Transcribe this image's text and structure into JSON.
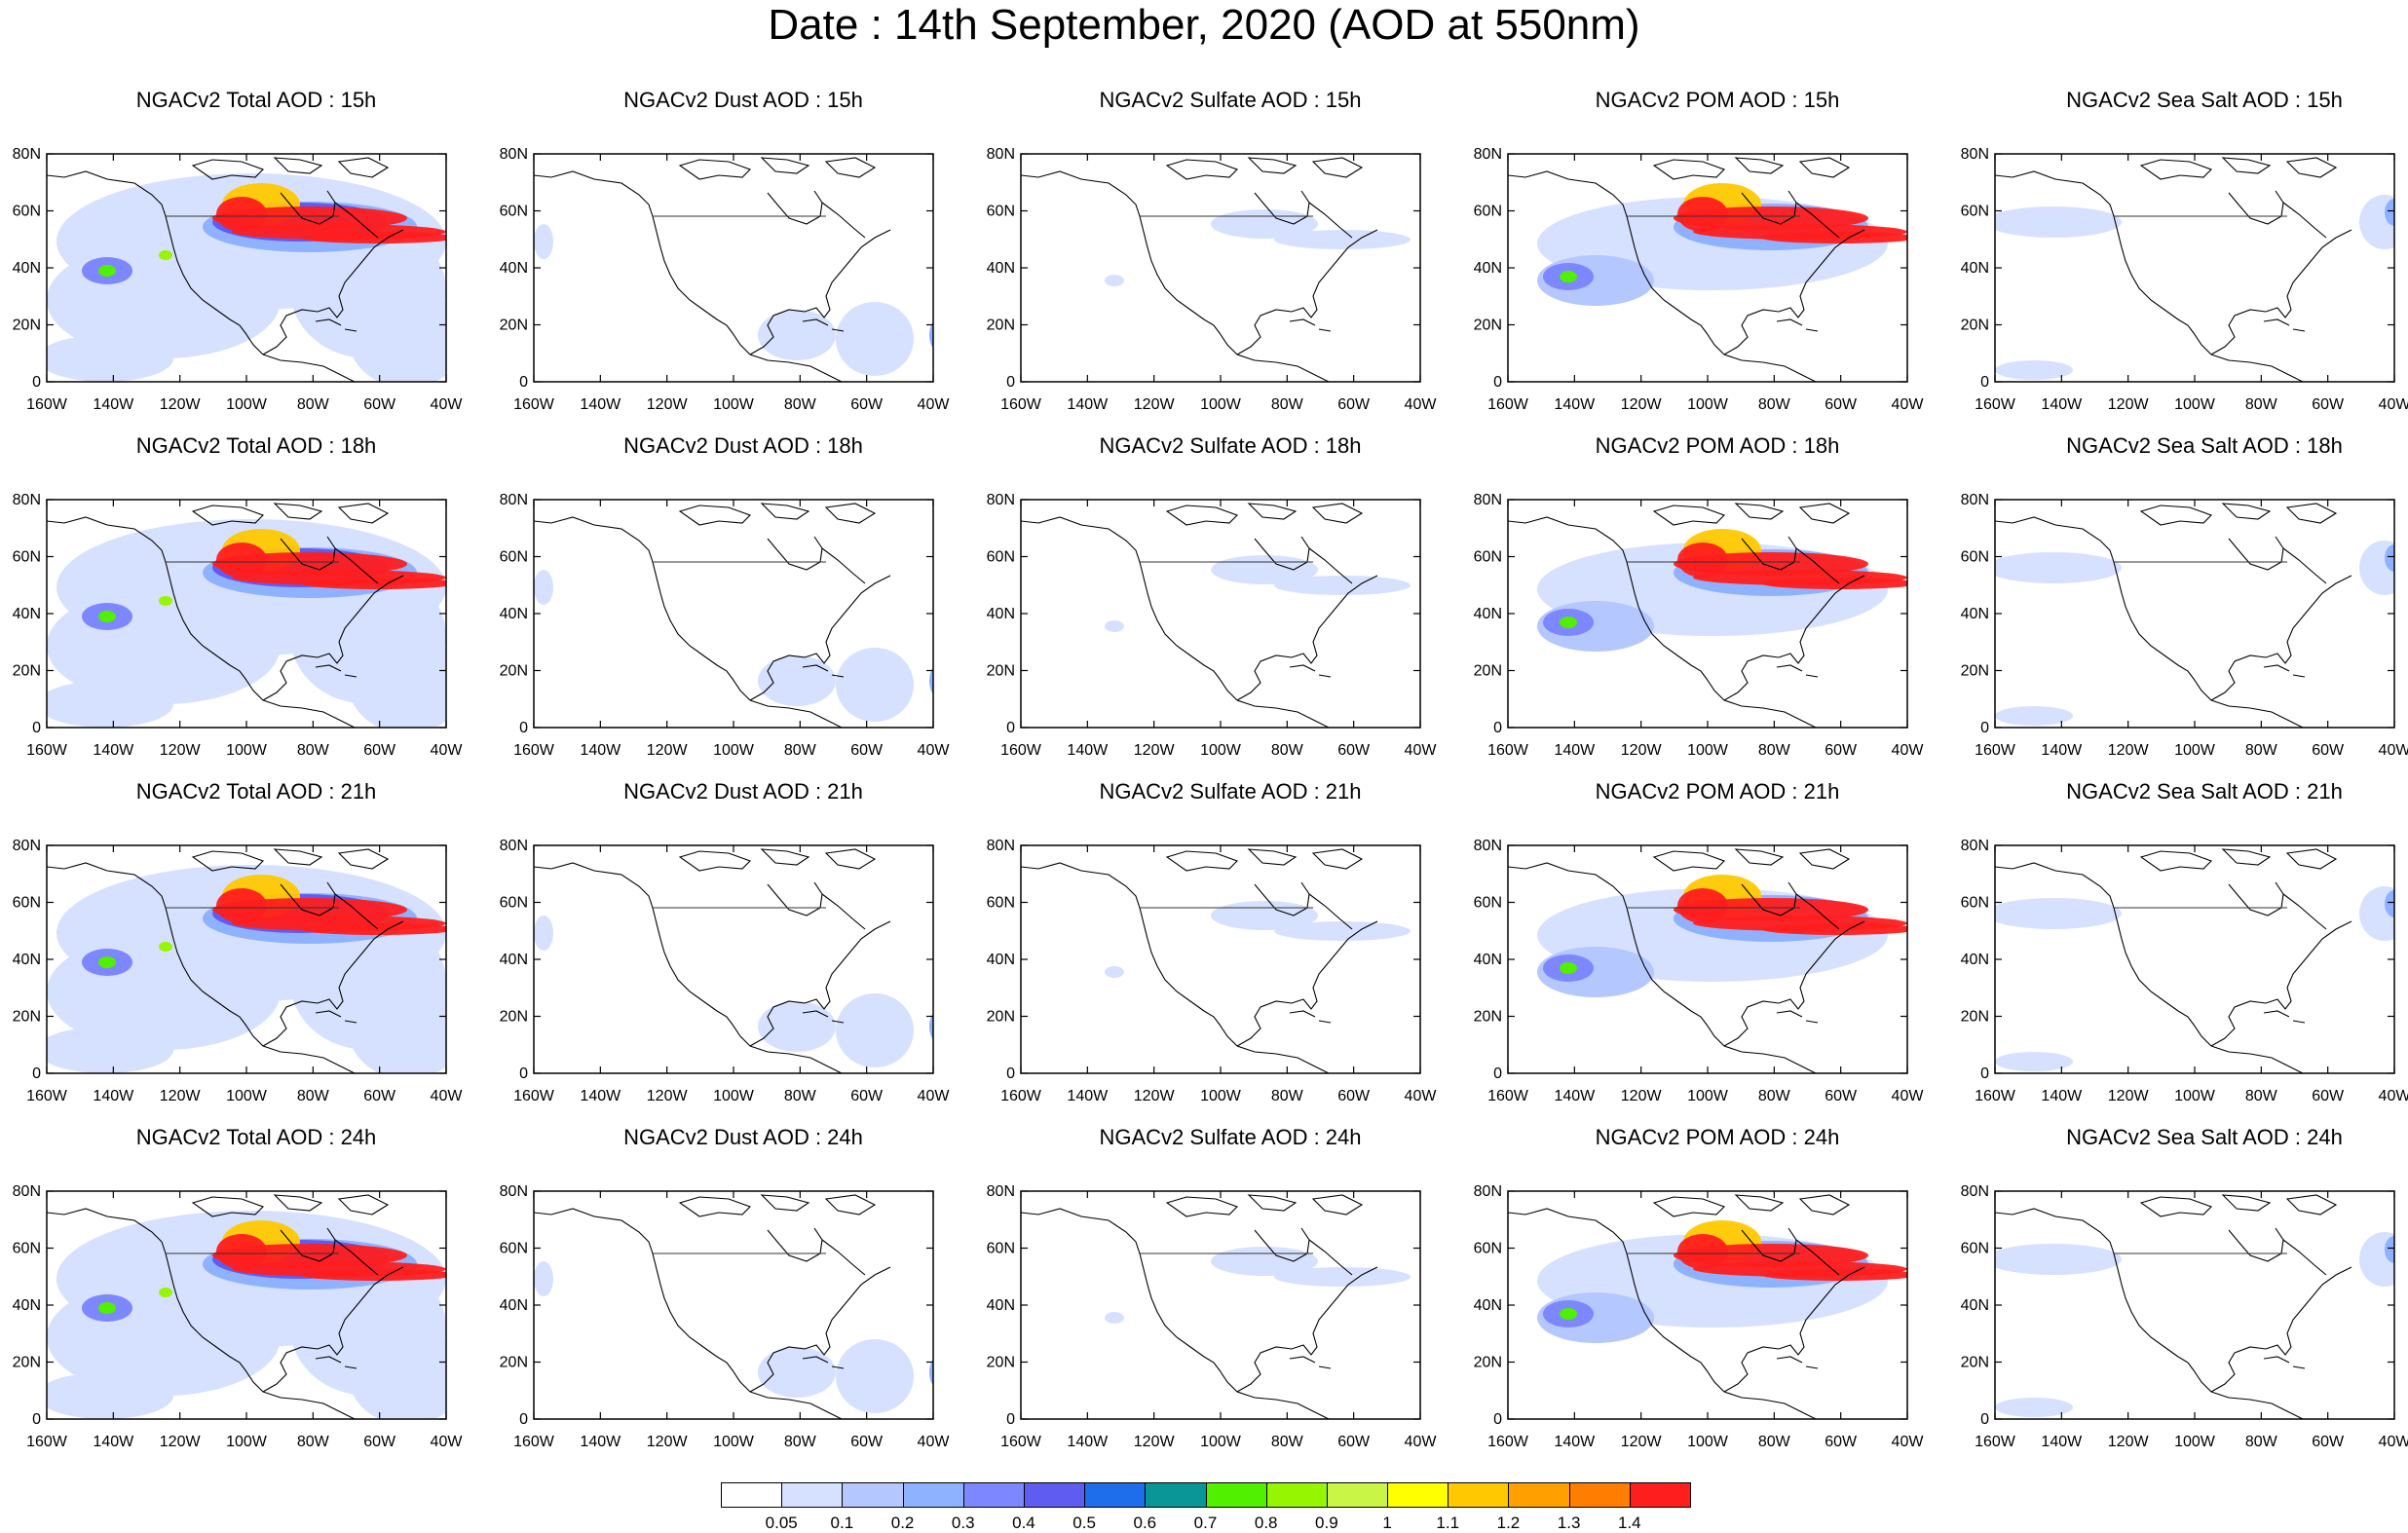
{
  "title": "Date : 14th September, 2020 (AOD at 550nm)",
  "lat_ticks": [
    "80N",
    "60N",
    "40N",
    "20N",
    "0"
  ],
  "lon_ticks": [
    "160W",
    "140W",
    "120W",
    "100W",
    "80W",
    "60W",
    "40W"
  ],
  "columns": [
    {
      "key": "total",
      "titles": [
        "NGACv2 Total AOD : 15h",
        "NGACv2 Total AOD : 18h",
        "NGACv2 Total AOD : 21h",
        "NGACv2 Total AOD : 24h"
      ]
    },
    {
      "key": "dust",
      "titles": [
        "NGACv2 Dust AOD : 15h",
        "NGACv2 Dust AOD : 18h",
        "NGACv2 Dust AOD : 21h",
        "NGACv2 Dust AOD : 24h"
      ]
    },
    {
      "key": "sulfate",
      "titles": [
        "NGACv2 Sulfate AOD : 15h",
        "NGACv2 Sulfate AOD : 18h",
        "NGACv2 Sulfate AOD : 21h",
        "NGACv2 Sulfate AOD : 24h"
      ]
    },
    {
      "key": "pom",
      "titles": [
        "NGACv2 POM AOD : 15h",
        "NGACv2 POM AOD : 18h",
        "NGACv2 POM AOD : 21h",
        "NGACv2 POM AOD : 24h"
      ]
    },
    {
      "key": "seasalt",
      "titles": [
        "NGACv2 Sea Salt AOD : 15h",
        "NGACv2 Sea Salt AOD : 18h",
        "NGACv2 Sea Salt AOD : 21h",
        "NGACv2 Sea Salt  AOD : 24h"
      ]
    }
  ],
  "colorbar": {
    "labels": [
      "0.05",
      "0.1",
      "0.2",
      "0.3",
      "0.4",
      "0.5",
      "0.6",
      "0.7",
      "0.8",
      "0.9",
      "1",
      "1.1",
      "1.2",
      "1.3",
      "1.4"
    ],
    "colors": [
      "#ffffff",
      "#d6e1ff",
      "#b4c7ff",
      "#8eb2ff",
      "#7d87ff",
      "#5f5cf2",
      "#1e6eeb",
      "#0a9696",
      "#50f000",
      "#96f500",
      "#c8f546",
      "#ffff00",
      "#ffc800",
      "#ffa000",
      "#ff7d00",
      "#ff1e1e"
    ]
  }
}
